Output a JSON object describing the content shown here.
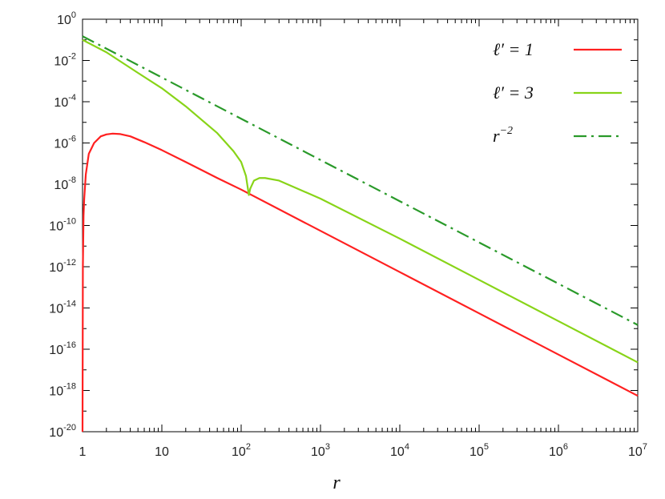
{
  "chart_data": {
    "type": "line",
    "title": "",
    "xlabel": "r",
    "ylabel": "",
    "xscale": "log",
    "yscale": "log",
    "xlim": [
      1,
      10000000
    ],
    "ylim": [
      1e-20,
      1
    ],
    "grid": false,
    "legend_position": "top-right",
    "x_ticks": [
      {
        "base": "1",
        "exp": ""
      },
      {
        "base": "10",
        "exp": ""
      },
      {
        "base": "10",
        "exp": "2"
      },
      {
        "base": "10",
        "exp": "3"
      },
      {
        "base": "10",
        "exp": "4"
      },
      {
        "base": "10",
        "exp": "5"
      },
      {
        "base": "10",
        "exp": "6"
      },
      {
        "base": "10",
        "exp": "7"
      }
    ],
    "y_ticks": [
      {
        "base": "10",
        "exp": "0"
      },
      {
        "base": "10",
        "exp": "-2"
      },
      {
        "base": "10",
        "exp": "-4"
      },
      {
        "base": "10",
        "exp": "-6"
      },
      {
        "base": "10",
        "exp": "-8"
      },
      {
        "base": "10",
        "exp": "-10"
      },
      {
        "base": "10",
        "exp": "-12"
      },
      {
        "base": "10",
        "exp": "-14"
      },
      {
        "base": "10",
        "exp": "-16"
      },
      {
        "base": "10",
        "exp": "-18"
      },
      {
        "base": "10",
        "exp": "-20"
      }
    ],
    "series": [
      {
        "name": "ℓ′ = 1",
        "legend": {
          "main": "ℓ′ = 1",
          "sup": ""
        },
        "color": "#ff2020",
        "dash": "solid",
        "points": [
          [
            1.0,
            1e-20
          ],
          [
            1.01,
            1e-12
          ],
          [
            1.03,
            3e-10
          ],
          [
            1.05,
            2e-09
          ],
          [
            1.1,
            3e-08
          ],
          [
            1.2,
            3e-07
          ],
          [
            1.4,
            1e-06
          ],
          [
            1.7,
            2.1e-06
          ],
          [
            2.0,
            2.6e-06
          ],
          [
            2.4,
            2.85e-06
          ],
          [
            3,
            2.7e-06
          ],
          [
            4,
            2.1e-06
          ],
          [
            6,
            1.1e-06
          ],
          [
            10,
            4.5e-07
          ],
          [
            20,
            1.2e-07
          ],
          [
            50,
            2e-08
          ],
          [
            100,
            5.5e-09
          ],
          [
            1000,
            5.5e-11
          ],
          [
            10000,
            5.5e-13
          ],
          [
            100000,
            5.5e-15
          ],
          [
            1000000,
            5.5e-17
          ],
          [
            10000000,
            5.5e-19
          ]
        ]
      },
      {
        "name": "ℓ′ = 3",
        "legend": {
          "main": "ℓ′ = 3",
          "sup": ""
        },
        "color": "#88d418",
        "dash": "solid",
        "points": [
          [
            1.0,
            0.1
          ],
          [
            2,
            0.025
          ],
          [
            5,
            0.0025
          ],
          [
            10,
            0.00045
          ],
          [
            20,
            6e-05
          ],
          [
            50,
            3e-06
          ],
          [
            80,
            4e-07
          ],
          [
            100,
            1.2e-07
          ],
          [
            115,
            2.5e-08
          ],
          [
            125,
            3e-09
          ],
          [
            130,
            6e-09
          ],
          [
            145,
            1.5e-08
          ],
          [
            170,
            2e-08
          ],
          [
            200,
            2e-08
          ],
          [
            300,
            1.5e-08
          ],
          [
            1000,
            2e-09
          ],
          [
            10000,
            2.3e-11
          ],
          [
            100000,
            2.3e-13
          ],
          [
            1000000,
            2.3e-15
          ],
          [
            10000000,
            2.3e-17
          ]
        ]
      },
      {
        "name": "r⁻²",
        "legend": {
          "main": "r",
          "sup": "−2"
        },
        "color": "#2a9a2a",
        "dash": "dashdot",
        "points": [
          [
            1,
            0.15
          ],
          [
            10,
            0.0015
          ],
          [
            100,
            1.5e-05
          ],
          [
            1000,
            1.5e-07
          ],
          [
            10000,
            1.5e-09
          ],
          [
            100000,
            1.5e-11
          ],
          [
            1000000,
            1.5e-13
          ],
          [
            10000000,
            1.5e-15
          ]
        ]
      }
    ]
  }
}
